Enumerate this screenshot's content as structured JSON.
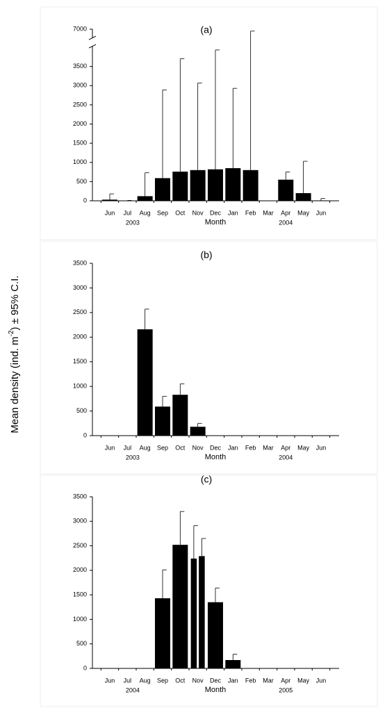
{
  "y_label": [
    "Mean density (ind. m",
    "-2",
    ") ± 95% C.I."
  ],
  "chart_data": [
    {
      "type": "bar",
      "title": "(a)",
      "x_label": "Month",
      "categories": [
        "Jun",
        "Jul",
        "Aug",
        "Sep",
        "Oct",
        "Nov",
        "Dec",
        "Jan",
        "Feb",
        "Mar",
        "Apr",
        "May",
        "Jun"
      ],
      "years": [
        "2003",
        "2004"
      ],
      "series": [
        {
          "color": "#000000",
          "values": [
            30,
            5,
            120,
            590,
            760,
            800,
            820,
            850,
            800,
            null,
            550,
            200,
            10
          ],
          "upper": [
            180,
            10,
            730,
            2890,
            3700,
            3070,
            3930,
            2930,
            6950,
            null,
            750,
            1030,
            60
          ]
        }
      ],
      "ylim": [
        0,
        7000
      ],
      "yticks": [
        0,
        500,
        1000,
        1500,
        2000,
        2500,
        3000,
        3500,
        7000
      ],
      "axis_break": [
        4000,
        6800
      ]
    },
    {
      "type": "bar",
      "title": "(b)",
      "x_label": "Month",
      "categories": [
        "Jun",
        "Jul",
        "Aug",
        "Sep",
        "Oct",
        "Nov",
        "Dec",
        "Jan",
        "Feb",
        "Mar",
        "Apr",
        "May",
        "Jun"
      ],
      "years": [
        "2003",
        "2004"
      ],
      "series": [
        {
          "color": "#000000",
          "values": [
            null,
            null,
            2160,
            590,
            830,
            180,
            null,
            null,
            null,
            null,
            null,
            null,
            null
          ],
          "upper": [
            null,
            null,
            2570,
            800,
            1050,
            250,
            null,
            null,
            null,
            null,
            null,
            null,
            null
          ]
        }
      ],
      "ylim": [
        0,
        3500
      ],
      "yticks": [
        0,
        500,
        1000,
        1500,
        2000,
        2500,
        3000,
        3500
      ]
    },
    {
      "type": "bar",
      "title": "(c)",
      "x_label": "Month",
      "categories": [
        "Jun",
        "Jul",
        "Aug",
        "Sep",
        "Oct",
        "Nov",
        "Dec",
        "Jan",
        "Feb",
        "Mar",
        "Apr",
        "May",
        "Jun"
      ],
      "years": [
        "2004",
        "2005"
      ],
      "series": [
        {
          "color": "#000000",
          "values": [
            null,
            null,
            null,
            1430,
            2520,
            2240,
            1350,
            170,
            null,
            null,
            null,
            null,
            null
          ],
          "upper": [
            null,
            null,
            null,
            2010,
            3200,
            2910,
            1640,
            290,
            null,
            null,
            null,
            null,
            null
          ]
        },
        {
          "color": "#000000",
          "values": [
            null,
            null,
            null,
            null,
            null,
            2290,
            null,
            null,
            null,
            null,
            null,
            null,
            null
          ],
          "upper": [
            null,
            null,
            null,
            null,
            null,
            2650,
            null,
            null,
            null,
            null,
            null,
            null,
            null
          ]
        }
      ],
      "ylim": [
        0,
        3500
      ],
      "yticks": [
        0,
        500,
        1000,
        1500,
        2000,
        2500,
        3000,
        3500
      ]
    }
  ]
}
